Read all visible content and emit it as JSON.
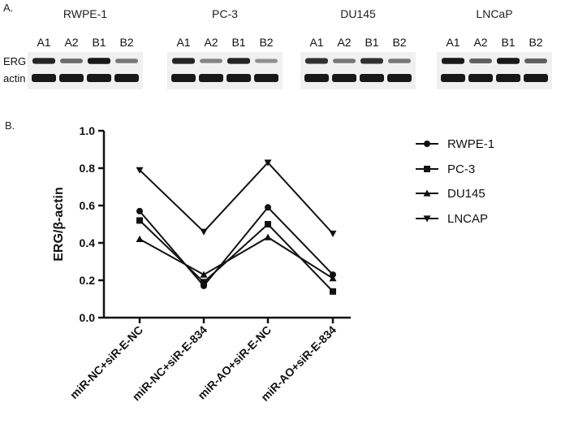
{
  "panel_a": {
    "label": "A.",
    "row_labels": [
      "ERG",
      "actin"
    ],
    "blots": [
      {
        "cell_line": "RWPE-1",
        "lanes": [
          "A1",
          "A2",
          "B1",
          "B2"
        ],
        "erg_intensity": [
          0.85,
          0.55,
          0.9,
          0.5
        ],
        "actin_intensity": [
          0.9,
          0.9,
          0.9,
          0.9
        ]
      },
      {
        "cell_line": "PC-3",
        "lanes": [
          "A1",
          "A2",
          "B1",
          "B2"
        ],
        "erg_intensity": [
          0.85,
          0.45,
          0.85,
          0.4
        ],
        "actin_intensity": [
          0.9,
          0.9,
          0.9,
          0.9
        ]
      },
      {
        "cell_line": "DU145",
        "lanes": [
          "A1",
          "A2",
          "B1",
          "B2"
        ],
        "erg_intensity": [
          0.8,
          0.5,
          0.8,
          0.5
        ],
        "actin_intensity": [
          0.9,
          0.9,
          0.9,
          0.9
        ]
      },
      {
        "cell_line": "LNCaP",
        "lanes": [
          "A1",
          "A2",
          "B1",
          "B2"
        ],
        "erg_intensity": [
          0.9,
          0.6,
          0.9,
          0.6
        ],
        "actin_intensity": [
          0.9,
          0.9,
          0.9,
          0.9
        ]
      }
    ]
  },
  "panel_b": {
    "label": "B."
  },
  "chart_data": {
    "type": "line",
    "title": "",
    "xlabel": "",
    "ylabel": "ERG/β-actin",
    "categories": [
      "miR-NC+siR-E-NC",
      "miR-NC+siR-E-834",
      "miR-AO+siR-E-NC",
      "miR-AO+siR-E-834"
    ],
    "ylim": [
      0.0,
      1.0
    ],
    "yticks": [
      "0.0",
      "0.2",
      "0.4",
      "0.6",
      "0.8",
      "1.0"
    ],
    "grid": false,
    "legend_position": "right",
    "series": [
      {
        "name": "RWPE-1",
        "marker": "circle",
        "values": [
          0.57,
          0.17,
          0.59,
          0.23
        ]
      },
      {
        "name": "PC-3",
        "marker": "square",
        "values": [
          0.52,
          0.19,
          0.5,
          0.14
        ]
      },
      {
        "name": "DU145",
        "marker": "triangle-up",
        "values": [
          0.42,
          0.23,
          0.43,
          0.21
        ]
      },
      {
        "name": "LNCAP",
        "marker": "triangle-down",
        "values": [
          0.79,
          0.46,
          0.83,
          0.45
        ]
      }
    ],
    "color": "#111111"
  }
}
